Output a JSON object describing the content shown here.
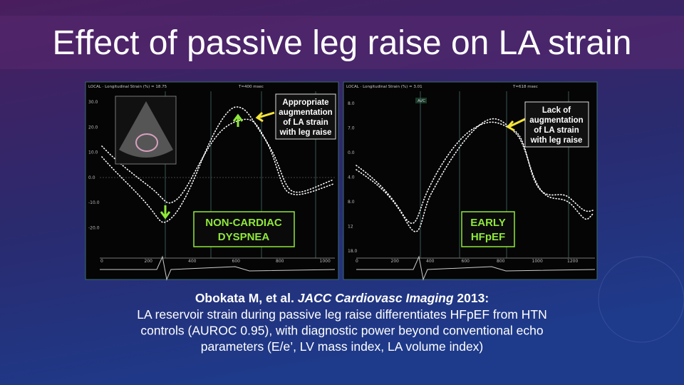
{
  "slide": {
    "title": "Effect of passive leg raise on LA strain",
    "left_panel": {
      "header": "LOCAL · Longitudinal Strain (%) = 18.75",
      "time": "T=400 msec",
      "y_labels": [
        "30.0",
        "20.0",
        "10.0",
        "0.0",
        "-10.0",
        "-20.0"
      ],
      "x_labels": [
        "0",
        "200",
        "400",
        "600",
        "800",
        "1000"
      ],
      "callout": [
        "Appropriate",
        "augmentation",
        "of LA strain",
        "with leg raise"
      ],
      "group": [
        "NON-CARDIAC",
        "DYSPNEA"
      ]
    },
    "right_panel": {
      "header": "LOCAL · Longitudinal Strain (%) = 3.01",
      "time": "T=618 msec",
      "marker": "AVC",
      "y_labels": [
        "8.0",
        "7.0",
        "0.0",
        "4.0",
        "8.0",
        "12",
        "18.0"
      ],
      "x_labels": [
        "0",
        "200",
        "400",
        "600",
        "800",
        "1000",
        "1200"
      ],
      "callout": [
        "Lack of",
        "augmentation",
        "of LA strain",
        "with leg raise"
      ],
      "group": [
        "EARLY",
        "HFpEF"
      ]
    },
    "caption": {
      "citation_author": "Obokata M, et al. ",
      "citation_journal": "JACC Cardiovasc Imaging",
      "citation_year": " 2013:",
      "lines": [
        "LA reservoir strain during passive leg raise differentiates HFpEF from HTN",
        "controls (AUROC 0.95), with diagnostic power beyond conventional echo",
        "parameters (E/e’, LV mass index, LA volume index)"
      ]
    }
  }
}
